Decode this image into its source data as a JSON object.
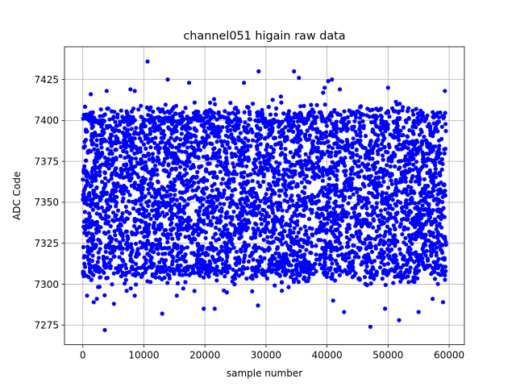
{
  "chart_data": {
    "type": "scatter",
    "title": "channel051 higain raw data",
    "xlabel": "sample number",
    "ylabel": "ADC Code",
    "xlim": [
      -3000,
      62500
    ],
    "ylim": [
      7263,
      7445
    ],
    "xticks": [
      0,
      10000,
      20000,
      30000,
      40000,
      50000,
      60000
    ],
    "yticks": [
      7275,
      7300,
      7325,
      7350,
      7375,
      7400,
      7425
    ],
    "grid": true,
    "marker_color": "#0000ff",
    "n_samples": 60000,
    "band": {
      "x_start": 0,
      "x_end": 59500,
      "y_low": 7310,
      "y_high": 7400
    },
    "outliers": [
      {
        "x": 10600,
        "y": 7436
      },
      {
        "x": 28800,
        "y": 7430
      },
      {
        "x": 34600,
        "y": 7430
      },
      {
        "x": 35400,
        "y": 7426
      },
      {
        "x": 13900,
        "y": 7425
      },
      {
        "x": 17400,
        "y": 7423
      },
      {
        "x": 26400,
        "y": 7423
      },
      {
        "x": 40800,
        "y": 7425
      },
      {
        "x": 40200,
        "y": 7424
      },
      {
        "x": 39600,
        "y": 7420
      },
      {
        "x": 50000,
        "y": 7420
      },
      {
        "x": 59300,
        "y": 7418
      },
      {
        "x": 7800,
        "y": 7419
      },
      {
        "x": 3900,
        "y": 7418
      },
      {
        "x": 1300,
        "y": 7416
      },
      {
        "x": 8500,
        "y": 7418
      },
      {
        "x": 42100,
        "y": 7419
      },
      {
        "x": 21500,
        "y": 7413
      },
      {
        "x": 3600,
        "y": 7272
      },
      {
        "x": 47100,
        "y": 7274
      },
      {
        "x": 51800,
        "y": 7278
      },
      {
        "x": 13000,
        "y": 7282
      },
      {
        "x": 42800,
        "y": 7283
      },
      {
        "x": 55000,
        "y": 7283
      },
      {
        "x": 49500,
        "y": 7285
      },
      {
        "x": 19800,
        "y": 7285
      },
      {
        "x": 21600,
        "y": 7285
      },
      {
        "x": 28700,
        "y": 7287
      },
      {
        "x": 1800,
        "y": 7289
      },
      {
        "x": 5100,
        "y": 7288
      },
      {
        "x": 59000,
        "y": 7289
      },
      {
        "x": 41000,
        "y": 7290
      },
      {
        "x": 2300,
        "y": 7291
      },
      {
        "x": 700,
        "y": 7293
      },
      {
        "x": 15400,
        "y": 7293
      },
      {
        "x": 8500,
        "y": 7293
      },
      {
        "x": 57300,
        "y": 7291
      },
      {
        "x": 23600,
        "y": 7295
      },
      {
        "x": 32600,
        "y": 7296
      }
    ]
  }
}
